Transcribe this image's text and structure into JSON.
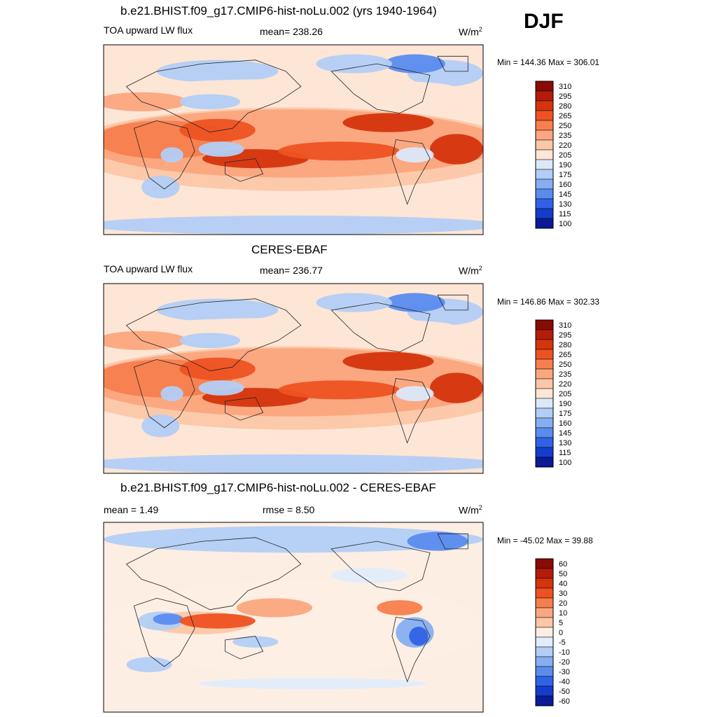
{
  "season": "DJF",
  "units_prefix": "W/m",
  "units_exp": "2",
  "panels": [
    {
      "title": "b.e21.BHIST.f09_g17.CMIP6-hist-noLu.002 (yrs 1940-1964)",
      "left_label": "TOA upward LW flux",
      "center_label": "mean= 238.26",
      "minmax": "Min = 144.36 Max = 306.01",
      "palette": "abs",
      "levels": [
        "310",
        "295",
        "280",
        "265",
        "250",
        "235",
        "220",
        "205",
        "190",
        "175",
        "160",
        "145",
        "130",
        "115",
        "100"
      ]
    },
    {
      "title": "CERES-EBAF",
      "left_label": "TOA upward LW flux",
      "center_label": "mean= 236.77",
      "minmax": "Min = 146.86 Max = 302.33",
      "palette": "abs",
      "levels": [
        "310",
        "295",
        "280",
        "265",
        "250",
        "235",
        "220",
        "205",
        "190",
        "175",
        "160",
        "145",
        "130",
        "115",
        "100"
      ]
    },
    {
      "title": "b.e21.BHIST.f09_g17.CMIP6-hist-noLu.002 - CERES-EBAF",
      "left_label": "mean =   1.49",
      "center_label": "rmse =   8.50",
      "minmax": "Min = -45.02 Max =  39.88",
      "palette": "diff",
      "levels": [
        "60",
        "50",
        "40",
        "30",
        "20",
        "10",
        "5",
        "0",
        "-5",
        "-10",
        "-20",
        "-30",
        "-40",
        "-50",
        "-60"
      ]
    }
  ],
  "chart_data": [
    {
      "type": "heatmap",
      "title": "b.e21.BHIST.f09_g17.CMIP6-hist-noLu.002 (yrs 1940-1964)",
      "variable": "TOA upward LW flux",
      "units": "W/m2",
      "season": "DJF",
      "mean": 238.26,
      "min": 144.36,
      "max": 306.01,
      "contour_levels": [
        100,
        115,
        130,
        145,
        160,
        175,
        190,
        205,
        220,
        235,
        250,
        265,
        280,
        295,
        310
      ]
    },
    {
      "type": "heatmap",
      "title": "CERES-EBAF",
      "variable": "TOA upward LW flux",
      "units": "W/m2",
      "season": "DJF",
      "mean": 236.77,
      "min": 146.86,
      "max": 302.33,
      "contour_levels": [
        100,
        115,
        130,
        145,
        160,
        175,
        190,
        205,
        220,
        235,
        250,
        265,
        280,
        295,
        310
      ]
    },
    {
      "type": "heatmap",
      "title": "b.e21.BHIST.f09_g17.CMIP6-hist-noLu.002 - CERES-EBAF",
      "units": "W/m2",
      "season": "DJF",
      "mean": 1.49,
      "rmse": 8.5,
      "min": -45.02,
      "max": 39.88,
      "contour_levels": [
        -60,
        -50,
        -40,
        -30,
        -20,
        -10,
        -5,
        0,
        5,
        10,
        20,
        30,
        40,
        50,
        60
      ]
    }
  ],
  "colors": {
    "abs": [
      "#8a0a05",
      "#b31c09",
      "#d5340c",
      "#ee5222",
      "#f77e4e",
      "#fba67e",
      "#fcc7a8",
      "#fde6d6",
      "#dbe8fa",
      "#b3cdf6",
      "#86aef2",
      "#5a8cee",
      "#2f62e6",
      "#153ccb",
      "#0a1a99"
    ],
    "diff": [
      "#8a0a05",
      "#b31c09",
      "#d5340c",
      "#ee5222",
      "#f77e4e",
      "#fba67e",
      "#fcc7a8",
      "#fdeee4",
      "#e2ecfb",
      "#b3cdf6",
      "#86aef2",
      "#5a8cee",
      "#2f62e6",
      "#153ccb",
      "#0a1a99"
    ]
  }
}
